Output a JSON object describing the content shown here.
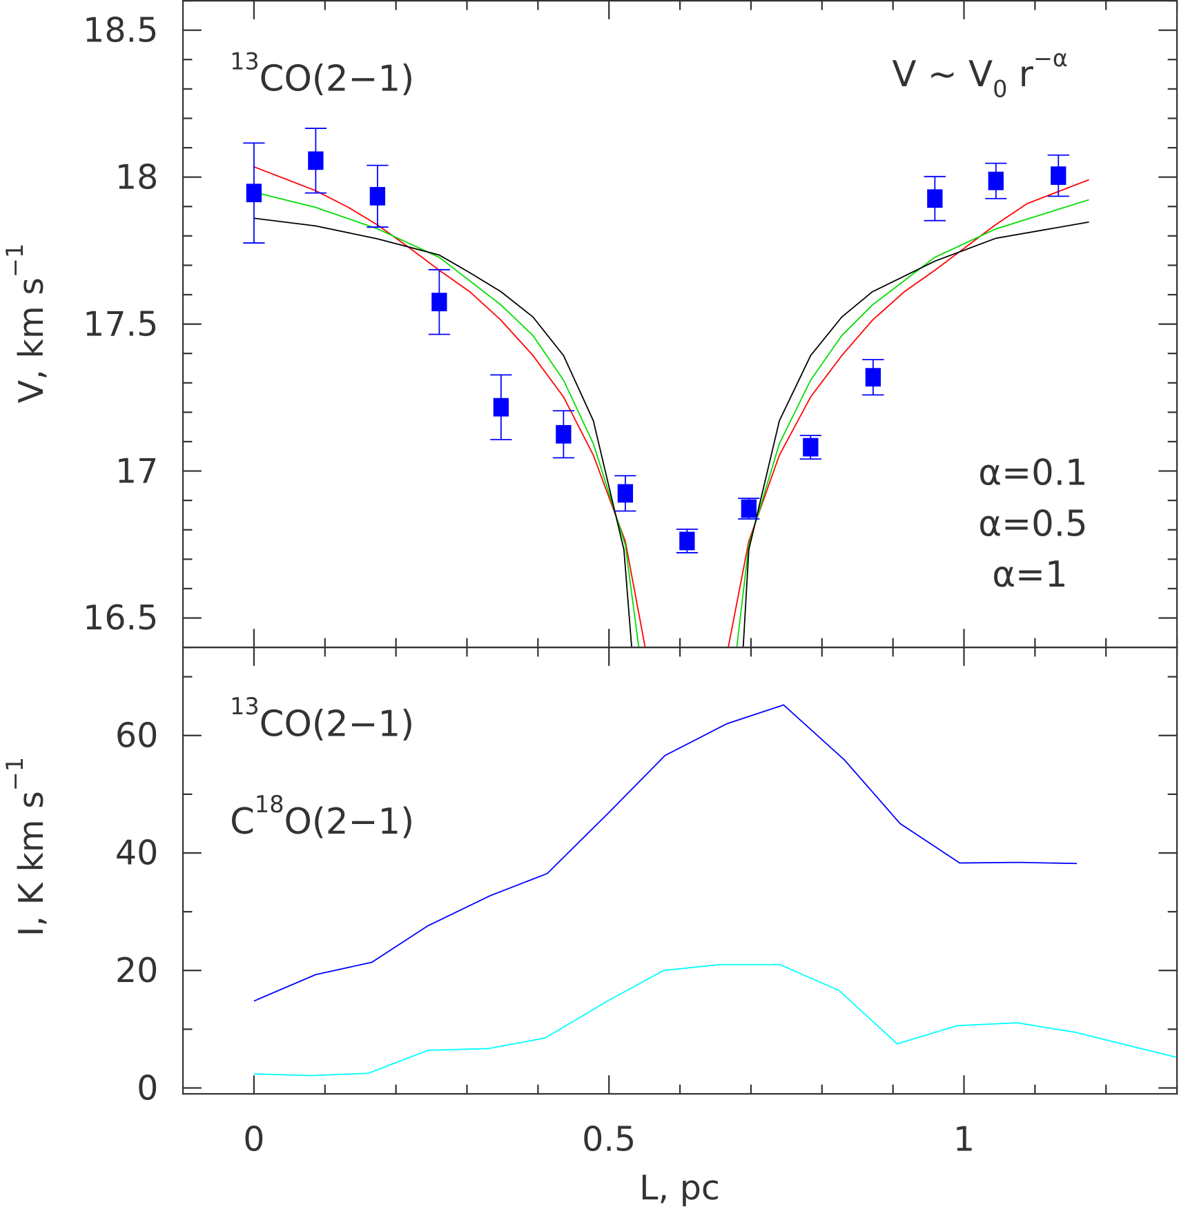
{
  "chart_data": [
    {
      "type": "scatter",
      "ylabel": "V, km s",
      "ylabel_sup": "−1",
      "xlim": [
        -0.1,
        1.3
      ],
      "ylim": [
        16.4,
        18.6
      ],
      "yticks": [
        "16.5",
        "17",
        "17.5",
        "18",
        "18.5"
      ],
      "ytick_values": [
        16.5,
        17,
        17.5,
        18,
        18.5
      ],
      "annotations": {
        "line": {
          "sup": "13",
          "text": "CO(2−1)",
          "color": "#0000ff"
        },
        "formula": {
          "a": "V ∼ V",
          "sub": "0",
          "b": " r",
          "sup": "−α",
          "color": "#ff0000"
        }
      },
      "points": {
        "color": "#0000ff",
        "x": [
          0,
          0.087,
          0.174,
          0.261,
          0.348,
          0.436,
          0.523,
          0.61,
          0.697,
          0.784,
          0.872,
          0.959,
          1.045,
          1.133
        ],
        "y": [
          17.946,
          18.056,
          17.935,
          17.575,
          17.217,
          17.125,
          16.924,
          16.762,
          16.872,
          17.081,
          17.319,
          17.927,
          17.987,
          18.005
        ],
        "err": [
          0.17,
          0.11,
          0.105,
          0.11,
          0.11,
          0.08,
          0.06,
          0.04,
          0.035,
          0.04,
          0.06,
          0.075,
          0.06,
          0.07
        ]
      },
      "series": [
        {
          "name": "α=0.1",
          "color": "#ff0000",
          "x": [
            0,
            0.087,
            0.133,
            0.174,
            0.218,
            0.261,
            0.304,
            0.348,
            0.393,
            0.436,
            0.478,
            0.523,
            0.551,
            null,
            0.668,
            0.697,
            0.74,
            0.784,
            0.828,
            0.871,
            0.916,
            0.959,
            1.002,
            1.045,
            1.089,
            1.176
          ],
          "y": [
            18.035,
            17.954,
            17.897,
            17.837,
            17.761,
            17.683,
            17.61,
            17.513,
            17.393,
            17.252,
            17.054,
            16.761,
            16.4,
            null,
            16.4,
            16.761,
            17.054,
            17.252,
            17.393,
            17.513,
            17.61,
            17.683,
            17.761,
            17.839,
            17.91,
            17.991
          ]
        },
        {
          "name": "α=0.5",
          "color": "#00dd00",
          "x": [
            0,
            0.087,
            0.174,
            0.261,
            0.348,
            0.393,
            0.436,
            0.478,
            0.523,
            0.542,
            null,
            0.68,
            0.697,
            0.74,
            0.784,
            0.828,
            0.871,
            0.959,
            1.045,
            1.176
          ],
          "y": [
            17.949,
            17.897,
            17.824,
            17.727,
            17.565,
            17.461,
            17.309,
            17.093,
            16.748,
            16.4,
            null,
            16.4,
            16.748,
            17.093,
            17.309,
            17.461,
            17.565,
            17.727,
            17.824,
            17.923
          ]
        },
        {
          "name": "α=1",
          "color": "#000000",
          "x": [
            0,
            0.087,
            0.174,
            0.261,
            0.304,
            0.348,
            0.393,
            0.436,
            0.478,
            0.521,
            0.532,
            null,
            0.689,
            0.697,
            0.74,
            0.784,
            0.828,
            0.871,
            0.959,
            1.045,
            1.176
          ],
          "y": [
            17.86,
            17.834,
            17.79,
            17.735,
            17.675,
            17.61,
            17.524,
            17.393,
            17.171,
            16.732,
            16.4,
            null,
            16.4,
            16.732,
            17.171,
            17.393,
            17.524,
            17.61,
            17.714,
            17.792,
            17.847
          ]
        }
      ]
    },
    {
      "type": "line",
      "xlabel": "L, pc",
      "ylabel": "I, K km s",
      "ylabel_sup": "−1",
      "xlim": [
        -0.1,
        1.3
      ],
      "ylim": [
        -1,
        75
      ],
      "xticks": [
        "0",
        "0.5",
        "1"
      ],
      "xtick_values": [
        0,
        0.5,
        1
      ],
      "yticks": [
        "0",
        "20",
        "40",
        "60"
      ],
      "ytick_values": [
        0,
        20,
        40,
        60
      ],
      "series": [
        {
          "name": "CO(2−1)",
          "sup": "13",
          "pre": "",
          "color": "#0000ff",
          "x": [
            0,
            0.087,
            0.166,
            0.245,
            0.332,
            0.413,
            0.5,
            0.579,
            0.666,
            0.746,
            0.832,
            0.91,
            0.994,
            1.078,
            1.159
          ],
          "y": [
            14.8,
            19.3,
            21.4,
            27.6,
            32.7,
            36.5,
            46.9,
            56.6,
            62.0,
            65.2,
            55.8,
            45.0,
            38.3,
            38.4,
            38.2
          ]
        },
        {
          "name": "O(2−1)",
          "sup": "18",
          "pre": "C",
          "color": "#00ffff",
          "x": [
            0,
            0.08,
            0.161,
            0.245,
            0.33,
            0.41,
            0.498,
            0.577,
            0.656,
            0.741,
            0.824,
            0.906,
            0.99,
            1.075,
            1.156,
            1.3
          ],
          "y": [
            2.4,
            2.1,
            2.5,
            6.4,
            6.7,
            8.5,
            14.8,
            20.0,
            21.0,
            21.0,
            16.6,
            7.5,
            10.6,
            11.1,
            9.5,
            5.2
          ]
        }
      ]
    }
  ]
}
